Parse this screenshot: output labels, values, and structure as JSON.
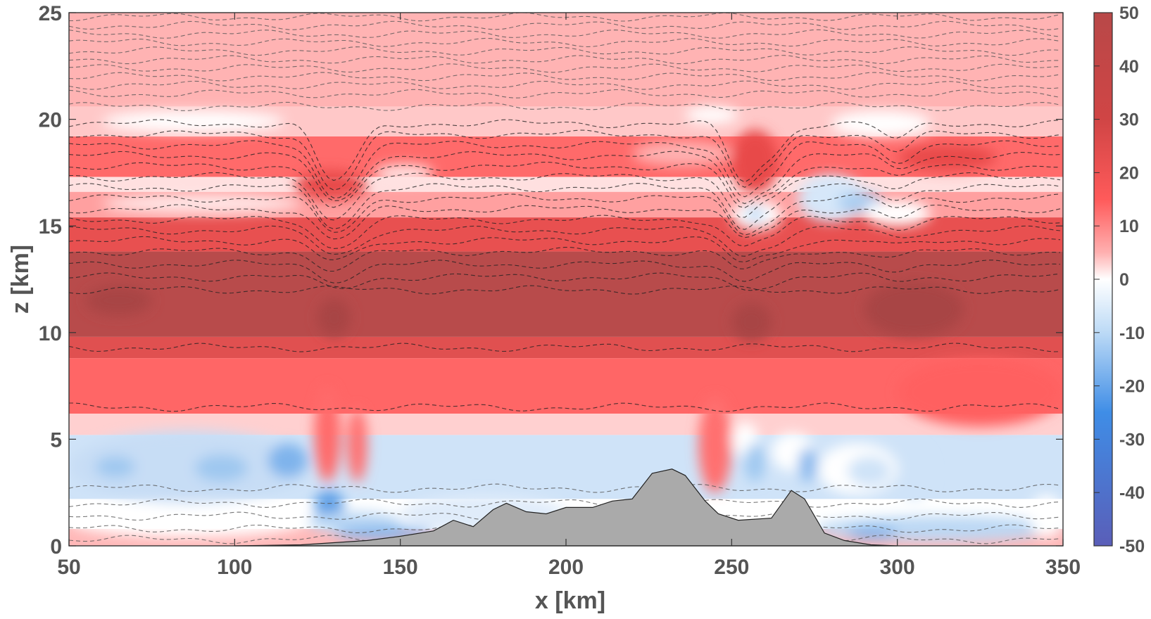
{
  "chart_data": {
    "type": "heatmap",
    "xlabel": "x [km]",
    "ylabel": "z [km]",
    "xlim": [
      50,
      350
    ],
    "ylim": [
      0,
      25
    ],
    "x_ticks": [
      50,
      100,
      150,
      200,
      250,
      300,
      350
    ],
    "y_ticks": [
      0,
      5,
      10,
      15,
      20,
      25
    ],
    "colorbar": {
      "range": [
        -50,
        50
      ],
      "ticks": [
        50,
        40,
        30,
        20,
        10,
        0,
        -10,
        -20,
        -30,
        -40,
        -50
      ],
      "colormap": [
        "#5a5eb8",
        "#3f8de6",
        "#8fc2f0",
        "#ffffff",
        "#ffb0b0",
        "#ff5a5a",
        "#b84848"
      ]
    },
    "terrain": [
      [
        100,
        0.0
      ],
      [
        120,
        0.05
      ],
      [
        140,
        0.25
      ],
      [
        150,
        0.45
      ],
      [
        160,
        0.7
      ],
      [
        166,
        1.2
      ],
      [
        172,
        0.9
      ],
      [
        178,
        1.7
      ],
      [
        182,
        2.0
      ],
      [
        188,
        1.6
      ],
      [
        194,
        1.5
      ],
      [
        200,
        1.8
      ],
      [
        208,
        1.8
      ],
      [
        214,
        2.1
      ],
      [
        220,
        2.2
      ],
      [
        226,
        3.4
      ],
      [
        232,
        3.6
      ],
      [
        236,
        3.3
      ],
      [
        242,
        2.1
      ],
      [
        246,
        1.5
      ],
      [
        252,
        1.2
      ],
      [
        262,
        1.3
      ],
      [
        268,
        2.6
      ],
      [
        272,
        2.2
      ],
      [
        278,
        0.6
      ],
      [
        284,
        0.25
      ],
      [
        292,
        0.05
      ],
      [
        300,
        0.0
      ]
    ],
    "contour_levels_km": [
      0.3,
      0.8,
      1.4,
      2.0,
      2.7,
      6.5,
      9.3,
      12.0,
      12.6,
      13.2,
      13.8,
      14.3,
      14.8,
      15.3,
      15.8,
      16.3,
      16.8,
      17.3,
      17.8,
      18.3,
      18.8,
      19.3,
      19.8,
      20.6,
      21.2,
      21.6,
      22.0,
      22.4,
      22.8,
      23.2,
      23.6,
      24.0,
      24.4,
      24.8
    ]
  }
}
